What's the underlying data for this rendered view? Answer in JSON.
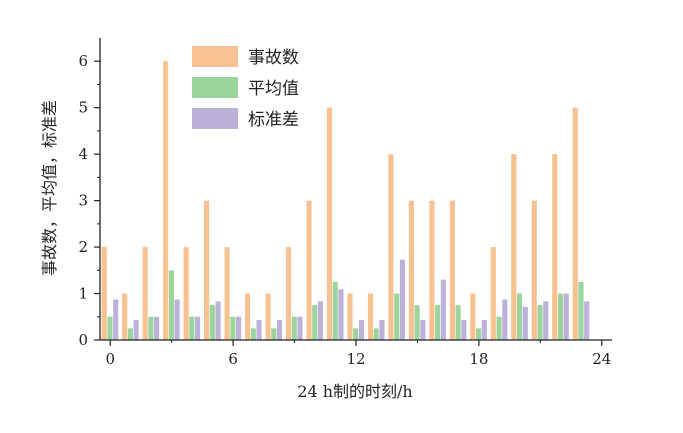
{
  "chart_data": {
    "type": "bar",
    "xlabel": "24 h制的时刻/h",
    "ylabel": "事故数，平均值，标准差",
    "x_ticks": [
      0,
      6,
      12,
      18,
      24
    ],
    "y_ticks": [
      0,
      1,
      2,
      3,
      4,
      5,
      6
    ],
    "xlim": [
      -0.5,
      24.5
    ],
    "ylim": [
      0,
      6.5
    ],
    "grid": false,
    "legend_position": "top-center",
    "x": [
      0,
      1,
      2,
      3,
      4,
      5,
      6,
      7,
      8,
      9,
      10,
      11,
      12,
      13,
      14,
      15,
      16,
      17,
      18,
      19,
      20,
      21,
      22,
      23
    ],
    "series": [
      {
        "name": "事故数",
        "color": "#f7c192",
        "values": [
          2,
          1,
          2,
          6,
          2,
          3,
          2,
          1,
          1,
          2,
          3,
          5,
          1,
          1,
          4,
          3,
          3,
          3,
          1,
          2,
          4,
          3,
          4,
          5
        ]
      },
      {
        "name": "平均值",
        "color": "#9bd59b",
        "values": [
          0.5,
          0.25,
          0.5,
          1.5,
          0.5,
          0.75,
          0.5,
          0.25,
          0.25,
          0.5,
          0.75,
          1.25,
          0.25,
          0.25,
          1.0,
          0.75,
          0.75,
          0.75,
          0.25,
          0.5,
          1.0,
          0.75,
          1.0,
          1.25
        ]
      },
      {
        "name": "标准差",
        "color": "#bcb1d8",
        "values": [
          0.87,
          0.43,
          0.5,
          0.87,
          0.5,
          0.83,
          0.5,
          0.43,
          0.43,
          0.5,
          0.83,
          1.09,
          0.43,
          0.43,
          1.73,
          0.43,
          1.3,
          0.43,
          0.43,
          0.87,
          0.71,
          0.83,
          1.0,
          0.83
        ]
      }
    ]
  }
}
